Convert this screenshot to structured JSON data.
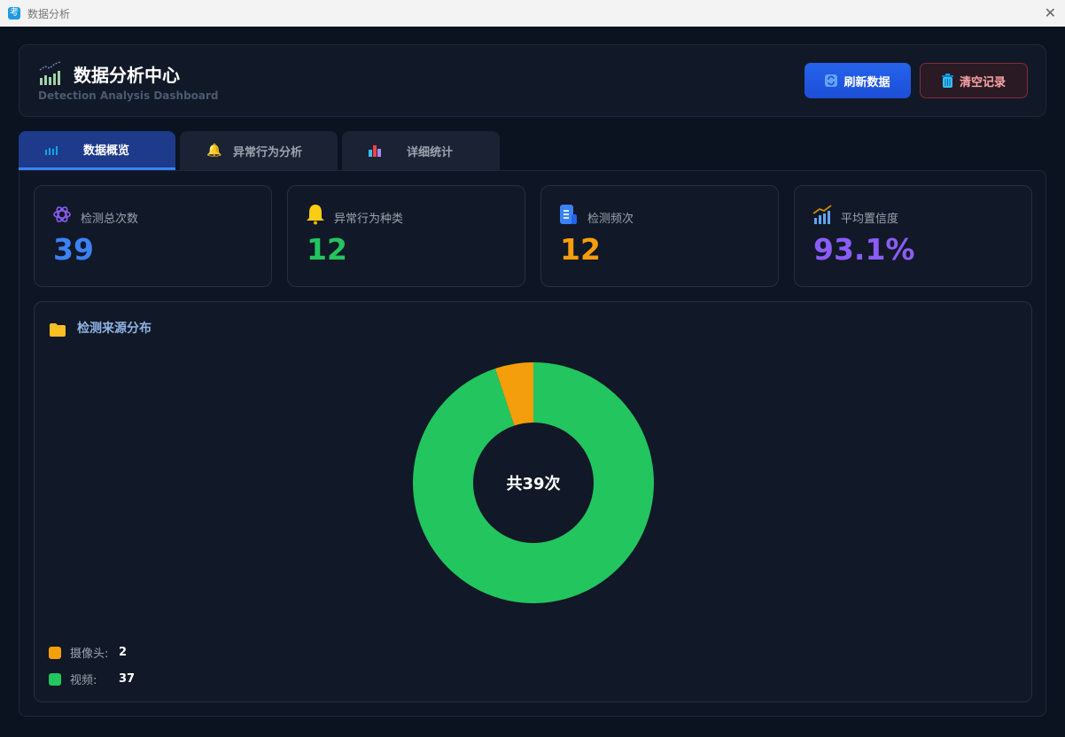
{
  "window": {
    "title": "数据分析",
    "app_icon_char": "考"
  },
  "header": {
    "title": "数据分析中心",
    "subtitle": "Detection Analysis Dashboard",
    "refresh_label": "刷新数据",
    "clear_label": "清空记录"
  },
  "tabs": [
    {
      "label": "数据概览",
      "icon": "chart-icon",
      "active": true
    },
    {
      "label": "异常行为分析",
      "icon": "bell-icon"
    },
    {
      "label": "详细统计",
      "icon": "bar-chart-icon"
    }
  ],
  "stats": [
    {
      "label": "检测总次数",
      "value": "39",
      "color": "#3b82f6",
      "icon": "atom-icon"
    },
    {
      "label": "异常行为种类",
      "value": "12",
      "color": "#22c55e",
      "icon": "bell-icon"
    },
    {
      "label": "检测频次",
      "value": "12",
      "color": "#f59e0b",
      "icon": "document-icon"
    },
    {
      "label": "平均置信度",
      "value": "93.1%",
      "color": "#8b5cf6",
      "icon": "chart-icon"
    }
  ],
  "chart_data": {
    "type": "pie",
    "title": "检测来源分布",
    "center_label": "共39次",
    "categories": [
      "摄像头",
      "视频"
    ],
    "values": [
      2,
      37
    ],
    "colors": [
      "#f59e0b",
      "#22c55e"
    ],
    "legend_placement": "bottom-left",
    "legend": [
      {
        "label": "摄像头:",
        "value": "2"
      },
      {
        "label": "视频:",
        "value": "37"
      }
    ]
  }
}
